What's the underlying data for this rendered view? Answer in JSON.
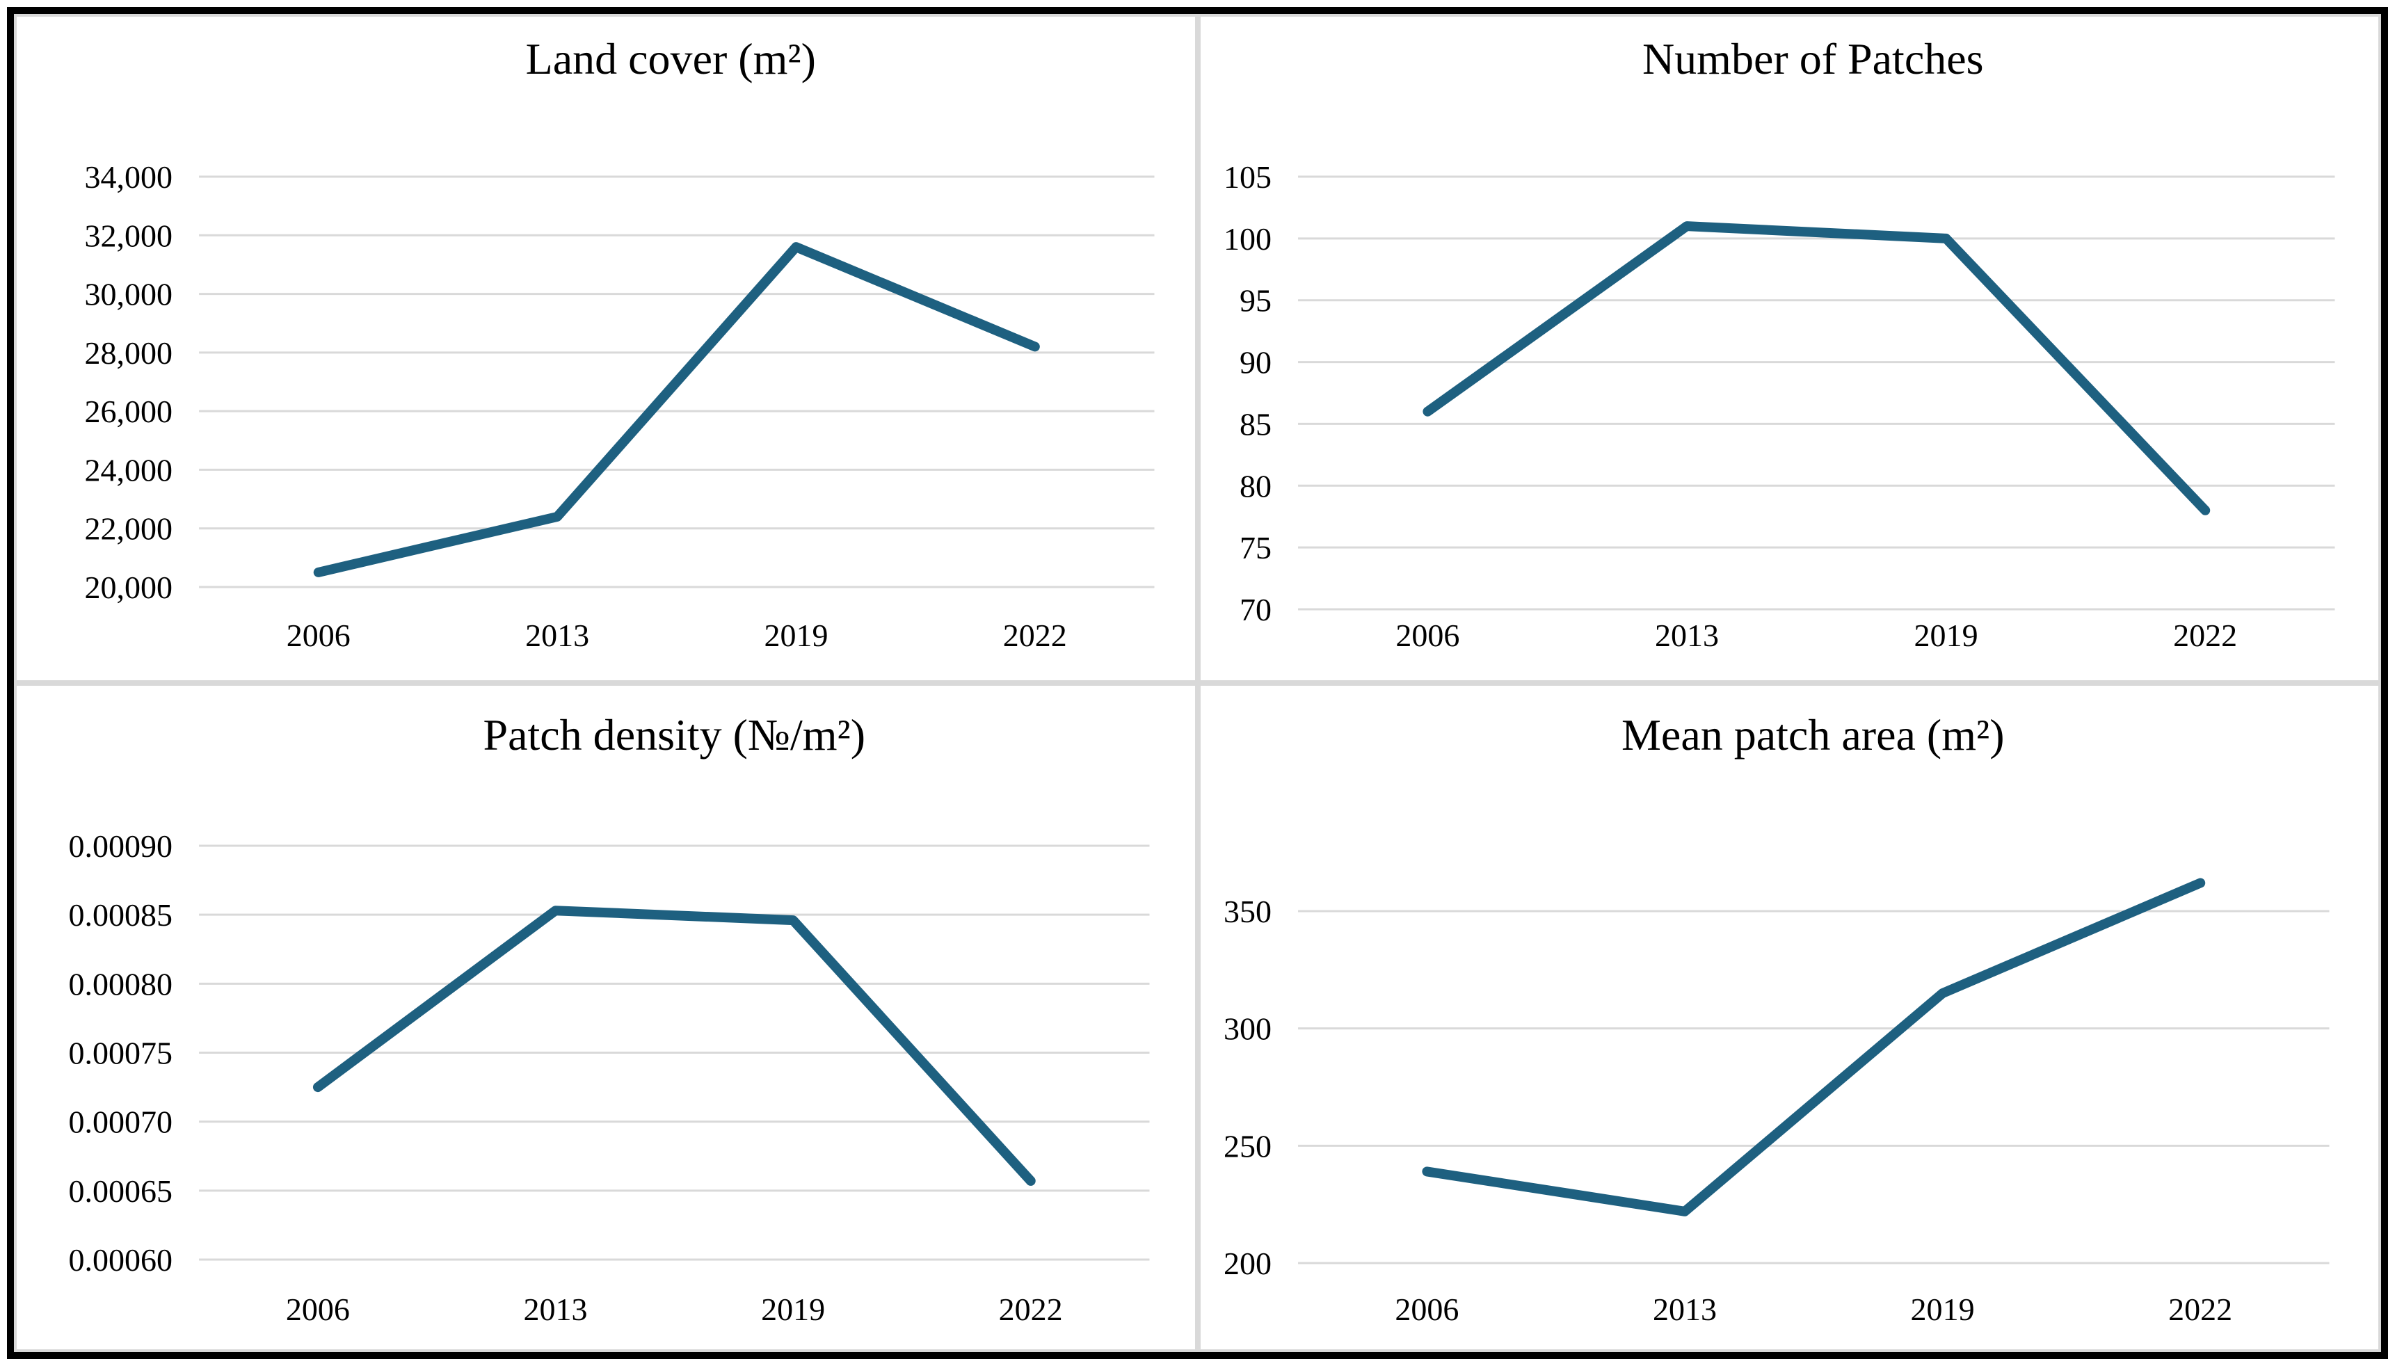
{
  "page": {
    "background": "#ffffff"
  },
  "colors": {
    "line": "#1e6080",
    "grid": "#d9d9d9",
    "text": "#000000",
    "frame": "#000000",
    "quadrant_border": "#d9d9d9"
  },
  "chart_data": [
    {
      "type": "line",
      "title": "Land cover (m²)",
      "categories": [
        "2006",
        "2013",
        "2019",
        "2022"
      ],
      "values": [
        20500,
        22400,
        31600,
        28200
      ],
      "yticks": [
        20000,
        22000,
        24000,
        26000,
        28000,
        30000,
        32000,
        34000
      ],
      "ytick_labels": [
        "20,000",
        "22,000",
        "24,000",
        "26,000",
        "28,000",
        "30,000",
        "32,000",
        "34,000"
      ],
      "ylim": [
        20000,
        34000
      ],
      "xlabel": "",
      "ylabel": "",
      "grid": true,
      "legend": "none"
    },
    {
      "type": "line",
      "title": "Number of Patches",
      "categories": [
        "2006",
        "2013",
        "2019",
        "2022"
      ],
      "values": [
        86,
        101,
        100,
        78
      ],
      "yticks": [
        70,
        75,
        80,
        85,
        90,
        95,
        100,
        105
      ],
      "ytick_labels": [
        "70",
        "75",
        "80",
        "85",
        "90",
        "95",
        "100",
        "105"
      ],
      "ylim": [
        70,
        105
      ],
      "xlabel": "",
      "ylabel": "",
      "grid": true,
      "legend": "none"
    },
    {
      "type": "line",
      "title": "Patch density (№/m²)",
      "categories": [
        "2006",
        "2013",
        "2019",
        "2022"
      ],
      "values": [
        0.000725,
        0.000853,
        0.000846,
        0.000657
      ],
      "yticks": [
        0.0006,
        0.00065,
        0.0007,
        0.00075,
        0.0008,
        0.00085,
        0.0009
      ],
      "ytick_labels": [
        "0.00060",
        "0.00065",
        "0.00070",
        "0.00075",
        "0.00080",
        "0.00085",
        "0.00090"
      ],
      "ylim": [
        0.0006,
        0.0009
      ],
      "xlabel": "",
      "ylabel": "",
      "grid": true,
      "legend": "none"
    },
    {
      "type": "line",
      "title": "Mean patch area (m²)",
      "categories": [
        "2006",
        "2013",
        "2019",
        "2022"
      ],
      "values": [
        239,
        222,
        315,
        362
      ],
      "yticks": [
        200,
        250,
        300,
        350
      ],
      "ytick_labels": [
        "200",
        "250",
        "300",
        "350"
      ],
      "ylim": [
        200,
        375
      ],
      "xlabel": "",
      "ylabel": "",
      "grid": true,
      "legend": "none"
    }
  ]
}
